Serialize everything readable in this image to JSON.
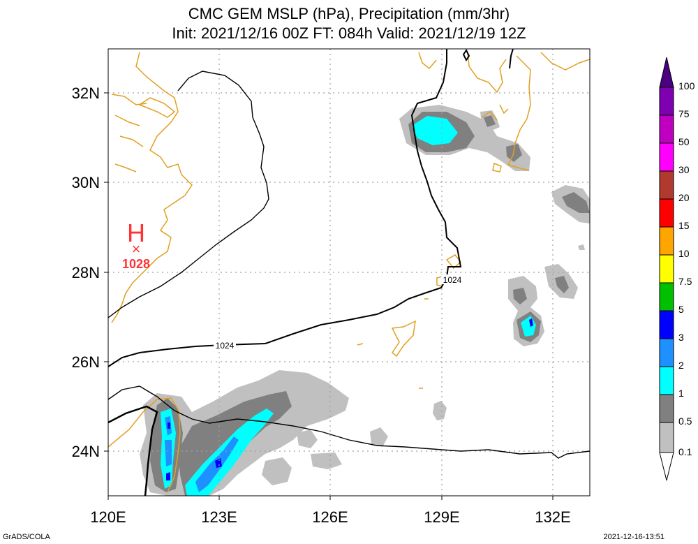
{
  "title": {
    "line1": "CMC GEM MSLP (hPa), Precipitation (mm/3hr)",
    "line2": "Init: 2021/12/16 00Z  FT: 084h  Valid: 2021/12/19 12Z"
  },
  "axes": {
    "lon_labels": [
      "120E",
      "123E",
      "126E",
      "129E",
      "132E"
    ],
    "lat_labels": [
      "32N",
      "30N",
      "28N",
      "26N",
      "24N"
    ],
    "lon_range": [
      120,
      133
    ],
    "lat_range": [
      23,
      33
    ]
  },
  "pressure": {
    "high_symbol": "H",
    "high_marker": "×",
    "high_value": "1028",
    "contour_labels": [
      "1024",
      "1024"
    ]
  },
  "colorbar": {
    "labels": [
      "100",
      "75",
      "50",
      "30",
      "20",
      "15",
      "10",
      "7.5",
      "5",
      "3",
      "2",
      "1",
      "0.5",
      "0.1"
    ],
    "colors": [
      "#7f00b0",
      "#c000c0",
      "#ff00ff",
      "#b03a2e",
      "#ff0000",
      "#ffa500",
      "#ffff00",
      "#00c000",
      "#0000ff",
      "#1e90ff",
      "#00ffff",
      "#808080",
      "#c0c0c0"
    ],
    "top_color": "#4b0082"
  },
  "colors": {
    "coast": "#e0a020",
    "isobar": "#000000",
    "high": "#ff3333",
    "grid": "#a0a0a0"
  },
  "footer": {
    "left": "GrADS/COLA",
    "right": "2021-12-16-13:51"
  }
}
